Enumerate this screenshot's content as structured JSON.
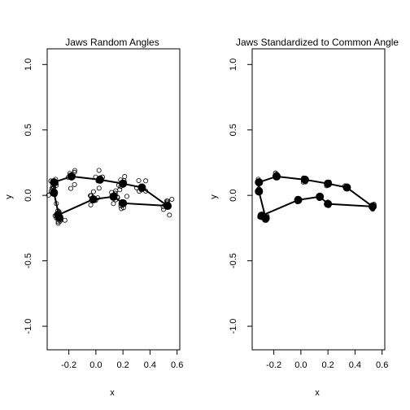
{
  "chart_data": [
    {
      "type": "scatter",
      "title": "Jaws Random Angles",
      "xlabel": "x",
      "ylabel": "y",
      "xlim": [
        -0.36,
        0.62
      ],
      "ylim": [
        -1.18,
        1.12
      ],
      "x_ticks": [
        -0.2,
        0.0,
        0.2,
        0.4,
        0.6
      ],
      "x_tick_labels": [
        "-0.2",
        "0.0",
        "0.2",
        "0.4",
        "0.6"
      ],
      "y_ticks": [
        -1.0,
        -0.5,
        0.0,
        0.5,
        1.0
      ],
      "y_tick_labels": [
        "-1.0",
        "-0.5",
        "0.0",
        "0.5",
        "1.0"
      ],
      "mean_shape": [
        {
          "x": -0.31,
          "y": 0.02
        },
        {
          "x": -0.31,
          "y": 0.1
        },
        {
          "x": -0.18,
          "y": 0.145
        },
        {
          "x": 0.03,
          "y": 0.12
        },
        {
          "x": 0.2,
          "y": 0.09
        },
        {
          "x": 0.34,
          "y": 0.06
        },
        {
          "x": 0.53,
          "y": -0.08
        },
        {
          "x": 0.2,
          "y": -0.06
        },
        {
          "x": 0.13,
          "y": -0.01
        },
        {
          "x": -0.02,
          "y": -0.03
        },
        {
          "x": -0.28,
          "y": -0.15
        },
        {
          "x": -0.27,
          "y": -0.17
        }
      ],
      "spread": 0.035
    },
    {
      "type": "scatter",
      "title": "Jaws Standardized to Common Angle",
      "xlabel": "x",
      "ylabel": "y",
      "xlim": [
        -0.36,
        0.62
      ],
      "ylim": [
        -1.18,
        1.12
      ],
      "x_ticks": [
        -0.2,
        0.0,
        0.2,
        0.4,
        0.6
      ],
      "x_tick_labels": [
        "-0.2",
        "0.0",
        "0.2",
        "0.4",
        "0.6"
      ],
      "y_ticks": [
        -1.0,
        -0.5,
        0.0,
        0.5,
        1.0
      ],
      "y_tick_labels": [
        "-1.0",
        "-0.5",
        "0.0",
        "0.5",
        "1.0"
      ],
      "mean_shape": [
        {
          "x": -0.31,
          "y": 0.03
        },
        {
          "x": -0.31,
          "y": 0.1
        },
        {
          "x": -0.18,
          "y": 0.145
        },
        {
          "x": 0.03,
          "y": 0.12
        },
        {
          "x": 0.2,
          "y": 0.09
        },
        {
          "x": 0.34,
          "y": 0.06
        },
        {
          "x": 0.53,
          "y": -0.085
        },
        {
          "x": 0.2,
          "y": -0.065
        },
        {
          "x": 0.14,
          "y": -0.01
        },
        {
          "x": -0.02,
          "y": -0.035
        },
        {
          "x": -0.29,
          "y": -0.155
        },
        {
          "x": -0.26,
          "y": -0.175
        }
      ],
      "spread": 0.012
    }
  ]
}
